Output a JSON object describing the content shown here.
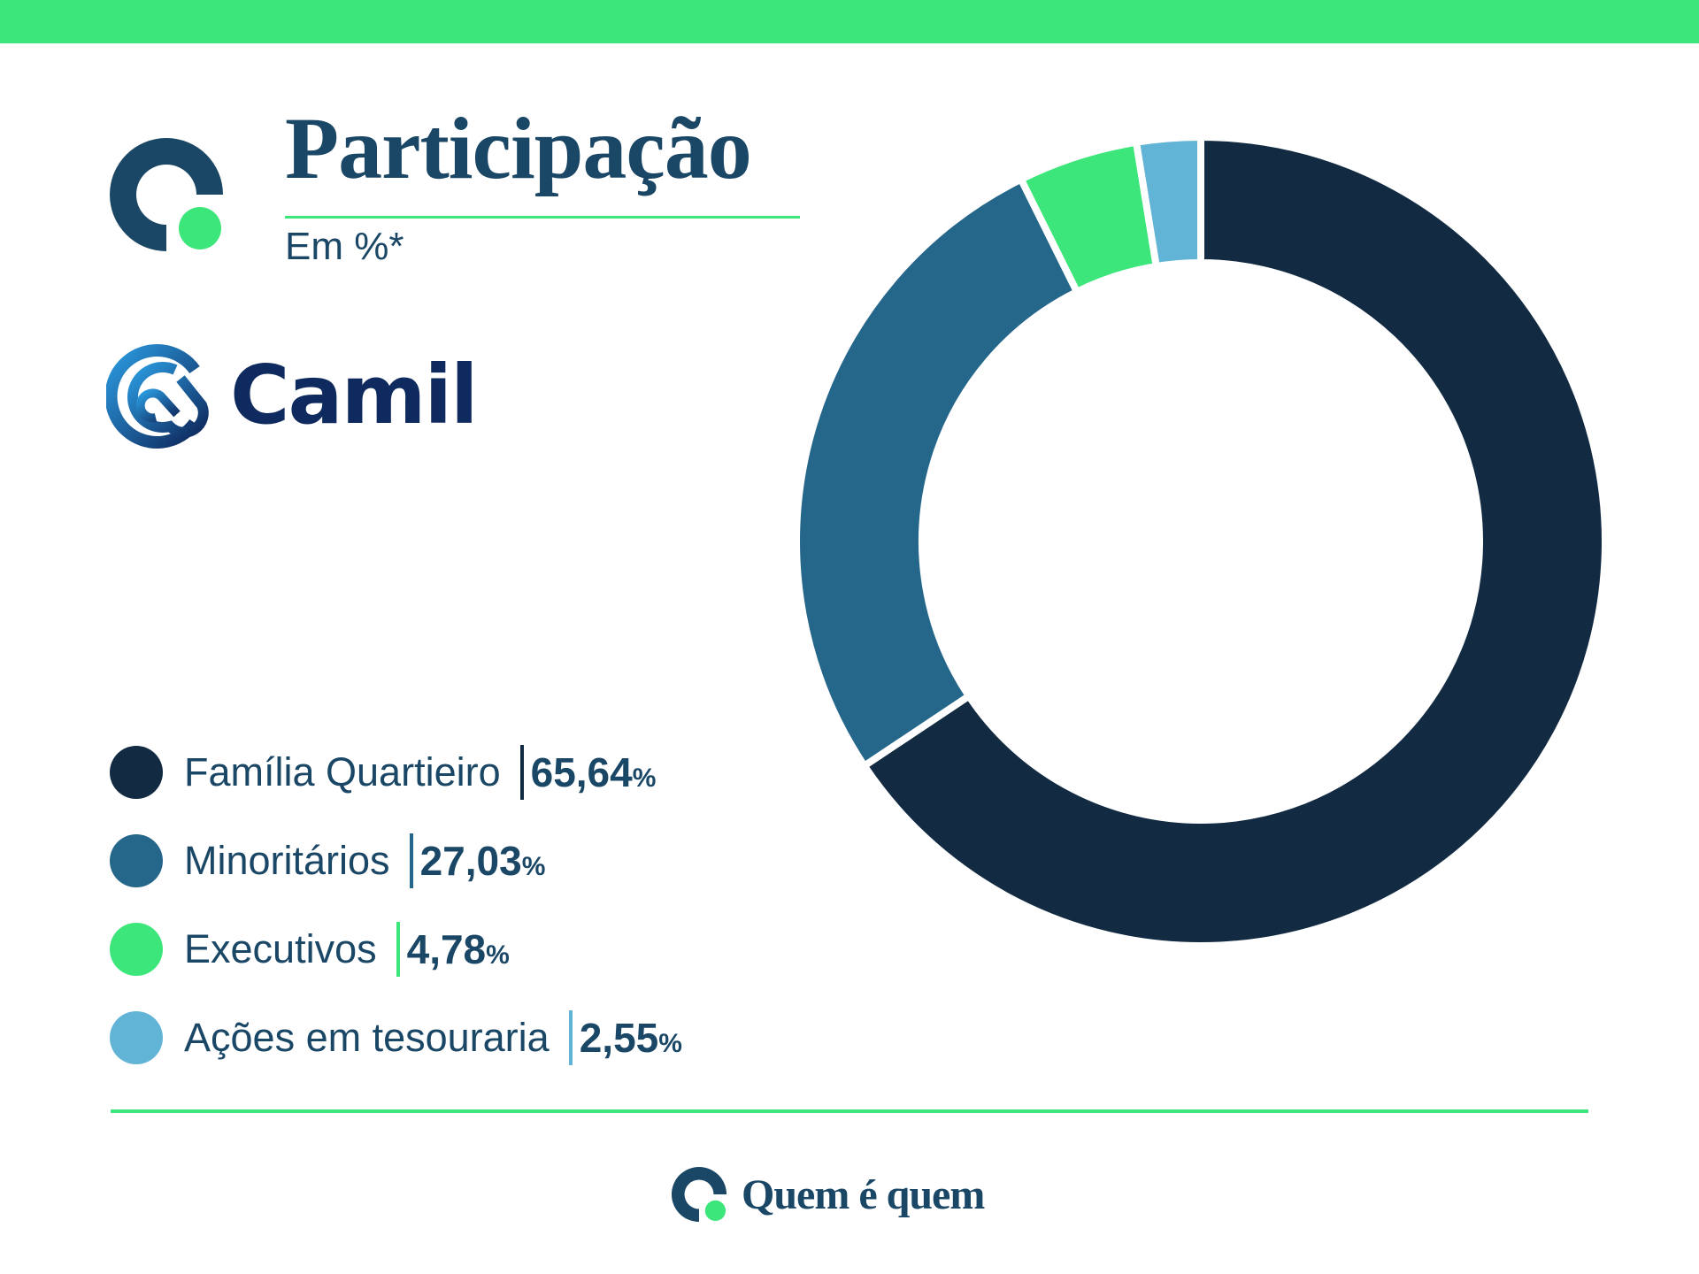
{
  "header": {
    "title": "Participação",
    "subtitle": "Em %*"
  },
  "company": {
    "name": "Camil"
  },
  "footer": {
    "brand": "Quem é quem"
  },
  "colors": {
    "accent": "#3de67a",
    "text": "#1b4766"
  },
  "chart_data": {
    "type": "pie",
    "variant": "donut",
    "title": "Participação",
    "subtitle": "Em %*",
    "legend_position": "left",
    "slices": [
      {
        "label": "Família Quartieiro",
        "value": 65.64,
        "display": "65,64",
        "unit": "%",
        "color": "#122b42"
      },
      {
        "label": "Minoritários",
        "value": 27.03,
        "display": "27,03",
        "unit": "%",
        "color": "#25668b"
      },
      {
        "label": "Executivos",
        "value": 4.78,
        "display": "4,78",
        "unit": "%",
        "color": "#3de67a"
      },
      {
        "label": "Ações em tesouraria",
        "value": 2.55,
        "display": "2,55",
        "unit": "%",
        "color": "#62b4d6"
      }
    ]
  }
}
